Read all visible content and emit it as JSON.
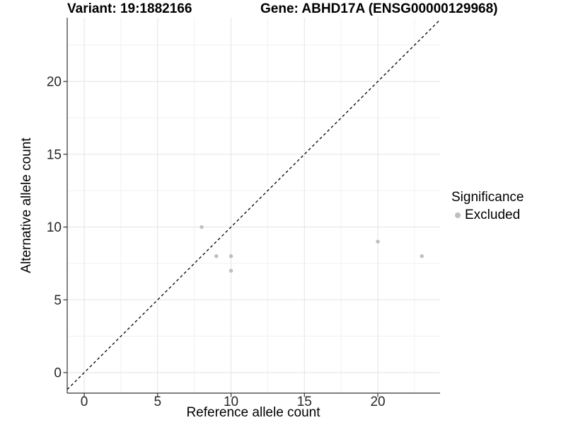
{
  "chart_data": {
    "type": "scatter",
    "title_left": "Variant: 19:1882166",
    "title_right": "Gene: ABHD17A (ENSG00000129968)",
    "xlabel": "Reference allele count",
    "ylabel": "Alternative allele count",
    "xlim": [
      -1.16,
      24.24
    ],
    "ylim": [
      -1.41,
      24.38
    ],
    "x_ticks": [
      0,
      5,
      10,
      15,
      20
    ],
    "y_ticks": [
      0,
      5,
      10,
      15,
      20
    ],
    "x_minor_ticks": [
      2.5,
      7.5,
      12.5,
      17.5,
      22.5
    ],
    "y_minor_ticks": [
      2.5,
      7.5,
      12.5,
      17.5,
      22.5
    ],
    "grid": "major+minor",
    "identity_line": {
      "slope": 1,
      "intercept": 0,
      "style": "dashed",
      "color": "#000000"
    },
    "series": [
      {
        "name": "Excluded",
        "color": "#bebebe",
        "point_radius": 2.7,
        "points": [
          [
            8,
            10
          ],
          [
            9,
            8
          ],
          [
            10,
            8
          ],
          [
            10,
            7
          ],
          [
            20,
            9
          ],
          [
            23,
            8
          ]
        ]
      }
    ],
    "legend": {
      "title": "Significance",
      "position": "right",
      "items": [
        {
          "label": "Excluded",
          "color": "#bebebe"
        }
      ]
    }
  },
  "colors": {
    "grid_major": "#e3e3e3",
    "grid_minor": "#f1f1f1",
    "axis_line": "#333333",
    "tick_mark": "#333333",
    "tick_text": "#262626",
    "identity_line": "#000000",
    "point": "#bebebe"
  }
}
